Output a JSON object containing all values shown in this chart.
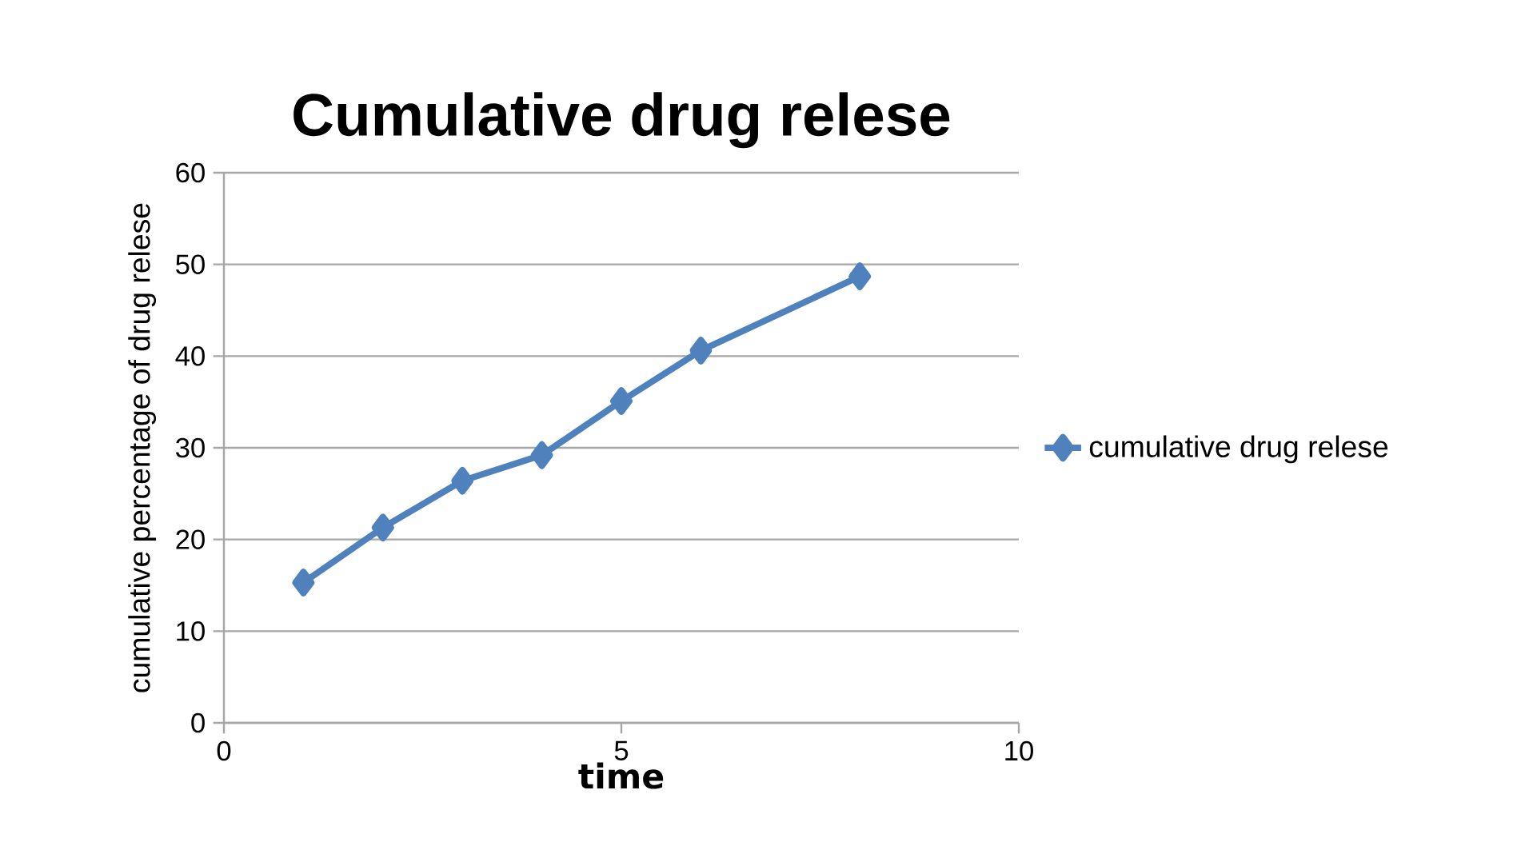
{
  "chart_data": {
    "type": "line",
    "title": "Cumulative drug relese",
    "xlabel": "time",
    "ylabel": "cumulative percentage of drug relese",
    "x": [
      1,
      2,
      3,
      4,
      5,
      6,
      8
    ],
    "series": [
      {
        "name": "cumulative drug relese",
        "color": "#4f81bd",
        "values": [
          15.3,
          21.3,
          26.4,
          29.2,
          35.1,
          40.6,
          48.7
        ]
      }
    ],
    "xlim": [
      0,
      10
    ],
    "xticks": [
      0,
      5,
      10
    ],
    "ylim": [
      0,
      60
    ],
    "yticks": [
      0,
      10,
      20,
      30,
      40,
      50,
      60
    ],
    "grid": "y",
    "legend": "right",
    "marker": "diamond",
    "line_style": "solid"
  }
}
